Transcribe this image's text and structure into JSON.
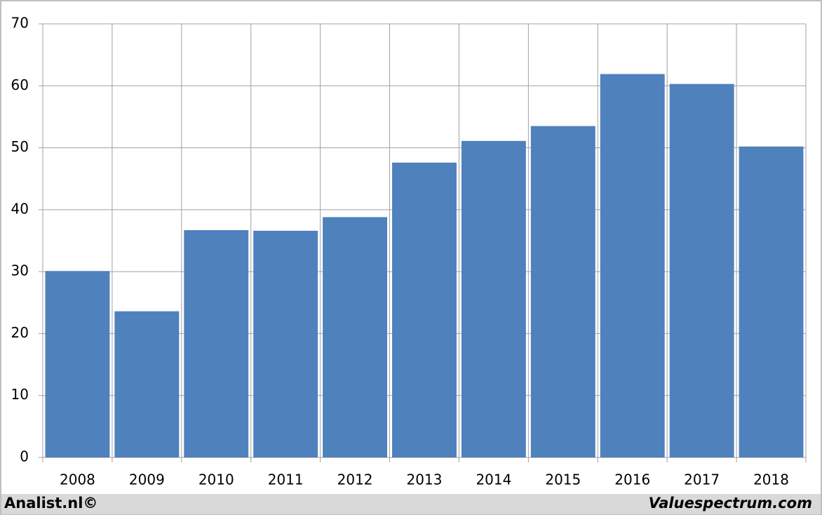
{
  "chart_data": {
    "type": "bar",
    "categories": [
      "2008",
      "2009",
      "2010",
      "2011",
      "2012",
      "2013",
      "2014",
      "2015",
      "2016",
      "2017",
      "2018"
    ],
    "values": [
      30.1,
      23.6,
      36.7,
      36.6,
      38.8,
      47.6,
      51.1,
      53.5,
      61.9,
      60.3,
      50.2
    ],
    "color": "#4f81bd",
    "ylim": [
      0,
      70
    ],
    "yticks": [
      0,
      10,
      20,
      30,
      40,
      50,
      60,
      70
    ],
    "grid": true
  },
  "footer": {
    "left": "Analist.nl©",
    "right": "Valuespectrum.com"
  }
}
